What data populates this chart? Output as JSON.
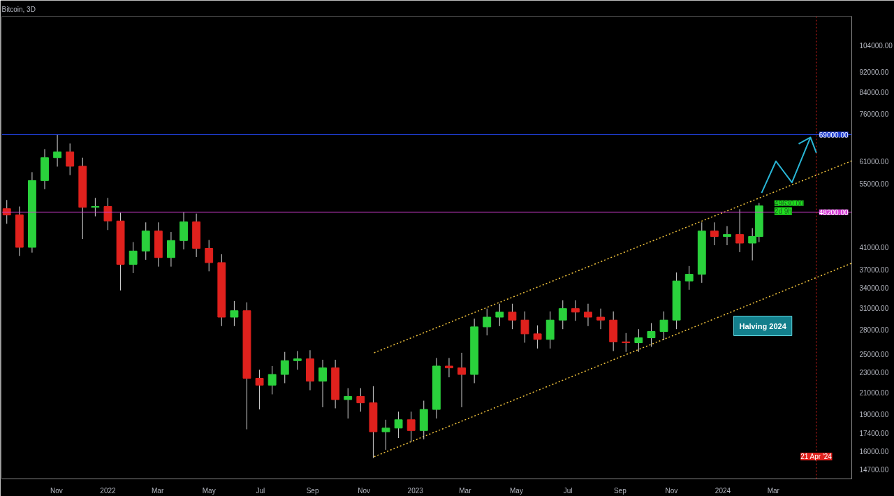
{
  "chart_data": {
    "type": "candlestick",
    "title": "Bitcoin, 3D",
    "x": [
      "2021-09-03",
      "2021-09-18",
      "2021-10-03",
      "2021-10-18",
      "2021-11-02",
      "2021-11-17",
      "2021-12-02",
      "2021-12-17",
      "2022-01-01",
      "2022-01-16",
      "2022-01-31",
      "2022-02-15",
      "2022-03-02",
      "2022-03-17",
      "2022-04-01",
      "2022-04-16",
      "2022-05-01",
      "2022-05-16",
      "2022-05-31",
      "2022-06-15",
      "2022-06-30",
      "2022-07-15",
      "2022-07-30",
      "2022-08-14",
      "2022-08-29",
      "2022-09-13",
      "2022-09-28",
      "2022-10-13",
      "2022-10-28",
      "2022-11-12",
      "2022-11-27",
      "2022-12-12",
      "2022-12-27",
      "2023-01-11",
      "2023-01-26",
      "2023-02-10",
      "2023-02-25",
      "2023-03-12",
      "2023-03-27",
      "2023-04-11",
      "2023-04-26",
      "2023-05-11",
      "2023-05-26",
      "2023-06-10",
      "2023-06-25",
      "2023-07-10",
      "2023-07-25",
      "2023-08-09",
      "2023-08-24",
      "2023-09-08",
      "2023-09-23",
      "2023-10-08",
      "2023-10-23",
      "2023-11-07",
      "2023-11-22",
      "2023-12-07",
      "2023-12-22",
      "2024-01-06",
      "2024-01-21",
      "2024-02-05",
      "2024-02-13"
    ],
    "ohlc": [
      [
        49000,
        51000,
        45700,
        47600
      ],
      [
        47600,
        49500,
        39400,
        41000
      ],
      [
        41000,
        58000,
        40000,
        55800
      ],
      [
        55800,
        64500,
        53600,
        62000
      ],
      [
        62000,
        69000,
        59500,
        63700
      ],
      [
        63700,
        66200,
        57200,
        59600
      ],
      [
        59600,
        62000,
        42600,
        49300
      ],
      [
        49300,
        51500,
        47300,
        49500
      ],
      [
        49500,
        51500,
        44400,
        46300
      ],
      [
        46300,
        48100,
        33600,
        37900
      ],
      [
        37900,
        42000,
        36400,
        40300
      ],
      [
        40300,
        46000,
        38700,
        44200
      ],
      [
        44200,
        46000,
        37500,
        39100
      ],
      [
        39100,
        44000,
        37500,
        42300
      ],
      [
        42300,
        48200,
        40600,
        46100
      ],
      [
        46100,
        47900,
        39200,
        40800
      ],
      [
        40800,
        42400,
        36700,
        38200
      ],
      [
        38200,
        39700,
        28500,
        29700
      ],
      [
        29700,
        32000,
        28500,
        30600
      ],
      [
        30600,
        31800,
        17700,
        22400
      ],
      [
        22400,
        23300,
        19400,
        21700
      ],
      [
        21700,
        23700,
        20800,
        22800
      ],
      [
        22800,
        25300,
        21900,
        24300
      ],
      [
        24300,
        25400,
        23300,
        24500
      ],
      [
        24500,
        25500,
        21200,
        22100
      ],
      [
        22100,
        24400,
        19600,
        23500
      ],
      [
        23500,
        24400,
        19500,
        20300
      ],
      [
        20300,
        21400,
        18600,
        20600
      ],
      [
        20600,
        21400,
        19200,
        20000
      ],
      [
        20000,
        21600,
        15500,
        17500
      ],
      [
        17500,
        18500,
        16100,
        17800
      ],
      [
        17800,
        19200,
        17000,
        18500
      ],
      [
        18500,
        19200,
        16700,
        17600
      ],
      [
        17600,
        20200,
        16900,
        19400
      ],
      [
        19400,
        24600,
        18600,
        23700
      ],
      [
        23700,
        24600,
        22500,
        23500
      ],
      [
        23500,
        25200,
        19600,
        22800
      ],
      [
        22800,
        29500,
        21900,
        28400
      ],
      [
        28400,
        30900,
        27300,
        29700
      ],
      [
        29700,
        31600,
        28500,
        30400
      ],
      [
        30400,
        31600,
        28100,
        29300
      ],
      [
        29300,
        30500,
        26400,
        27500
      ],
      [
        27500,
        28600,
        25700,
        26800
      ],
      [
        26800,
        30500,
        25700,
        29300
      ],
      [
        29300,
        32100,
        28100,
        30900
      ],
      [
        30900,
        32100,
        29200,
        30400
      ],
      [
        30400,
        31600,
        28500,
        29700
      ],
      [
        29700,
        30900,
        28100,
        29300
      ],
      [
        29300,
        30500,
        25400,
        26500
      ],
      [
        26500,
        27600,
        25300,
        26400
      ],
      [
        26400,
        28100,
        25300,
        27000
      ],
      [
        27000,
        28900,
        25900,
        27800
      ],
      [
        27800,
        30500,
        26700,
        29300
      ],
      [
        29300,
        36500,
        28100,
        35100
      ],
      [
        35100,
        37600,
        33700,
        36200
      ],
      [
        36200,
        46000,
        34800,
        44200
      ],
      [
        44200,
        46000,
        41400,
        43100
      ],
      [
        43100,
        45200,
        41400,
        43500
      ],
      [
        43500,
        48900,
        40100,
        41800
      ],
      [
        41800,
        44800,
        38600,
        43100
      ],
      [
        43100,
        50300,
        42000,
        49630
      ]
    ],
    "colors": [
      "#e0211d",
      "#e0211d",
      "#2ad13c",
      "#2ad13c",
      "#2ad13c",
      "#e0211d",
      "#e0211d",
      "#2ad13c",
      "#e0211d",
      "#e0211d",
      "#2ad13c",
      "#2ad13c",
      "#e0211d",
      "#2ad13c",
      "#2ad13c",
      "#e0211d",
      "#e0211d",
      "#e0211d",
      "#2ad13c",
      "#e0211d",
      "#e0211d",
      "#2ad13c",
      "#2ad13c",
      "#2ad13c",
      "#e0211d",
      "#2ad13c",
      "#e0211d",
      "#2ad13c",
      "#e0211d",
      "#e0211d",
      "#2ad13c",
      "#2ad13c",
      "#e0211d",
      "#2ad13c",
      "#2ad13c",
      "#e0211d",
      "#e0211d",
      "#2ad13c",
      "#2ad13c",
      "#2ad13c",
      "#e0211d",
      "#e0211d",
      "#e0211d",
      "#2ad13c",
      "#2ad13c",
      "#e0211d",
      "#e0211d",
      "#e0211d",
      "#e0211d",
      "#e0211d",
      "#2ad13c",
      "#2ad13c",
      "#2ad13c",
      "#2ad13c",
      "#2ad13c",
      "#2ad13c",
      "#e0211d",
      "#2ad13c",
      "#e0211d",
      "#2ad13c",
      "#2ad13c"
    ],
    "series": [
      {
        "type": "line",
        "color": "#f0c23c",
        "line_style": "dotted",
        "x": [
          "2022-11-13",
          "2024-06-02"
        ],
        "values": [
          25200,
          61100
        ]
      },
      {
        "type": "line",
        "color": "#f0c23c",
        "line_style": "dotted",
        "x": [
          "2022-11-13",
          "2024-06-02"
        ],
        "values": [
          15600,
          38100
        ]
      },
      {
        "type": "line",
        "color": "#29b6d6",
        "line_style": "solid",
        "x": [
          "2024-02-16",
          "2024-03-04",
          "2024-03-23",
          "2024-04-14",
          "2024-04-21"
        ],
        "values": [
          52700,
          61000,
          55300,
          68100,
          63400
        ]
      },
      {
        "type": "line",
        "color": "#29b6d6",
        "line_style": "solid",
        "x": [
          "2024-03-31",
          "2024-04-14"
        ],
        "values": [
          66100,
          68100
        ]
      }
    ],
    "log": true,
    "ylim": [
      14080,
      119000
    ],
    "yticks": [
      {
        "value": 14700,
        "label": "14700.00"
      },
      {
        "value": 16000,
        "label": "16000.00"
      },
      {
        "value": 17400,
        "label": "17400.00"
      },
      {
        "value": 19000,
        "label": "19000.00"
      },
      {
        "value": 21000,
        "label": "21000.00"
      },
      {
        "value": 23000,
        "label": "23000.00"
      },
      {
        "value": 25000,
        "label": "25000.00"
      },
      {
        "value": 28000,
        "label": "28000.00"
      },
      {
        "value": 31000,
        "label": "31000.00"
      },
      {
        "value": 34000,
        "label": "34000.00"
      },
      {
        "value": 37000,
        "label": "37000.00"
      },
      {
        "value": 41000,
        "label": "41000.00"
      },
      {
        "value": 55000,
        "label": "55000.00"
      },
      {
        "value": 61000,
        "label": "61000.00"
      },
      {
        "value": 76000,
        "label": "76000.00"
      },
      {
        "value": 84000,
        "label": "84000.00"
      },
      {
        "value": 92000,
        "label": "92000.00"
      },
      {
        "value": 104000,
        "label": "104000.00"
      }
    ],
    "xlim": [
      "2021-08-28",
      "2024-06-02"
    ],
    "xticks": [
      {
        "value": "2021-11-01",
        "label": "Nov"
      },
      {
        "value": "2022-01-01",
        "label": "2022"
      },
      {
        "value": "2022-03-01",
        "label": "Mar"
      },
      {
        "value": "2022-05-01",
        "label": "May"
      },
      {
        "value": "2022-07-01",
        "label": "Jul"
      },
      {
        "value": "2022-09-01",
        "label": "Sep"
      },
      {
        "value": "2022-11-01",
        "label": "Nov"
      },
      {
        "value": "2023-01-01",
        "label": "2023"
      },
      {
        "value": "2023-03-01",
        "label": "Mar"
      },
      {
        "value": "2023-05-01",
        "label": "May"
      },
      {
        "value": "2023-07-01",
        "label": "Jul"
      },
      {
        "value": "2023-09-01",
        "label": "Sep"
      },
      {
        "value": "2023-11-01",
        "label": "Nov"
      },
      {
        "value": "2024-01-01",
        "label": "2024"
      },
      {
        "value": "2024-03-01",
        "label": "Mar"
      }
    ],
    "ref_lines": [
      {
        "axis": "y",
        "value": 69000,
        "label": "69000.00",
        "color": "#1e3ccf"
      },
      {
        "axis": "y",
        "value": 48200,
        "label": "48200.00",
        "color": "#d63fd6"
      },
      {
        "axis": "x",
        "value": "2024-04-21",
        "label": "21 Apr '24",
        "color": "#e0211d",
        "line_style": "dotted"
      }
    ],
    "annotations": [
      {
        "text": "49630.00",
        "x": "2024-02-13",
        "y": 49630
      },
      "2d 9h",
      "Halving 2024"
    ],
    "grid": false
  }
}
